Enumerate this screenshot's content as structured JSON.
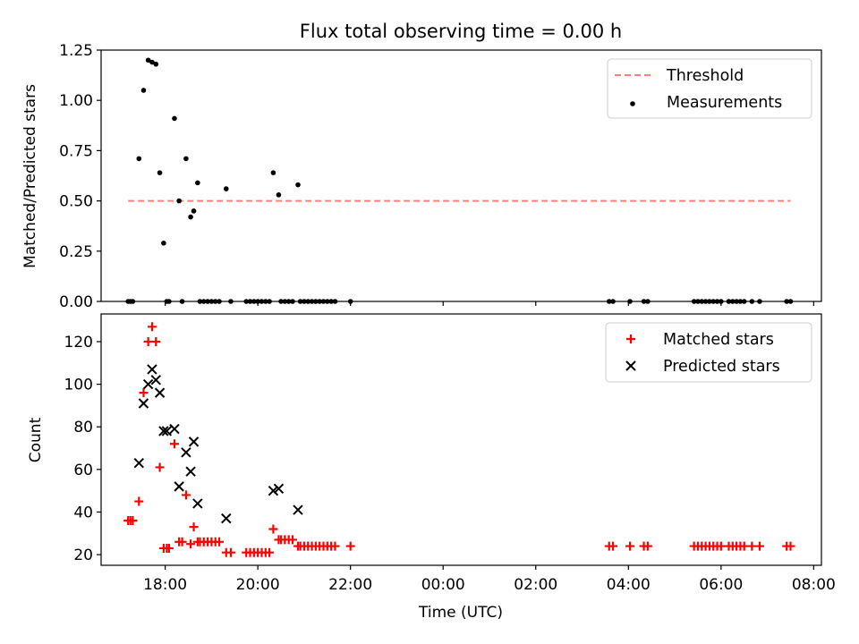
{
  "chart_data": [
    {
      "type": "scatter",
      "title": "Flux total observing time = 0.00 h",
      "xlabel": "",
      "ylabel": "Matched/Predicted stars",
      "xlim": [
        "16:37",
        "08:10"
      ],
      "ylim": [
        0,
        1.25
      ],
      "y_ticks": [
        0.0,
        0.25,
        0.5,
        0.75,
        1.0,
        1.25
      ],
      "y_tick_labels": [
        "0.00",
        "0.25",
        "0.50",
        "0.75",
        "1.00",
        "1.25"
      ],
      "x_ticks": [
        "18:00",
        "20:00",
        "22:00",
        "00:00",
        "02:00",
        "04:00",
        "06:00",
        "08:00"
      ],
      "x_tick_labels_shown": false,
      "legend_position": "upper right",
      "series": [
        {
          "name": "Threshold",
          "kind": "line",
          "style": "dashed",
          "color": "#ff7f7f",
          "x": [
            "17:12",
            "07:30"
          ],
          "y": [
            0.5,
            0.5
          ]
        },
        {
          "name": "Measurements",
          "kind": "scatter",
          "marker": "dot",
          "color": "#000000",
          "points": [
            [
              "17:12",
              0.0
            ],
            [
              "17:15",
              0.0
            ],
            [
              "17:18",
              0.0
            ],
            [
              "17:26",
              0.71
            ],
            [
              "17:32",
              1.05
            ],
            [
              "17:38",
              1.2
            ],
            [
              "17:43",
              1.19
            ],
            [
              "17:48",
              1.18
            ],
            [
              "17:53",
              0.64
            ],
            [
              "17:58",
              0.29
            ],
            [
              "18:02",
              0.0
            ],
            [
              "18:05",
              0.0
            ],
            [
              "18:12",
              0.91
            ],
            [
              "18:18",
              0.5
            ],
            [
              "18:22",
              0.0
            ],
            [
              "18:27",
              0.71
            ],
            [
              "18:33",
              0.42
            ],
            [
              "18:37",
              0.45
            ],
            [
              "18:42",
              0.59
            ],
            [
              "18:45",
              0.0
            ],
            [
              "18:50",
              0.0
            ],
            [
              "18:55",
              0.0
            ],
            [
              "19:00",
              0.0
            ],
            [
              "19:05",
              0.0
            ],
            [
              "19:10",
              0.0
            ],
            [
              "19:19",
              0.56
            ],
            [
              "19:25",
              0.0
            ],
            [
              "19:45",
              0.0
            ],
            [
              "19:50",
              0.0
            ],
            [
              "19:55",
              0.0
            ],
            [
              "20:00",
              0.0
            ],
            [
              "20:05",
              0.0
            ],
            [
              "20:10",
              0.0
            ],
            [
              "20:15",
              0.0
            ],
            [
              "20:20",
              0.64
            ],
            [
              "20:27",
              0.53
            ],
            [
              "20:30",
              0.0
            ],
            [
              "20:35",
              0.0
            ],
            [
              "20:40",
              0.0
            ],
            [
              "20:45",
              0.0
            ],
            [
              "20:52",
              0.58
            ],
            [
              "20:55",
              0.0
            ],
            [
              "21:00",
              0.0
            ],
            [
              "21:05",
              0.0
            ],
            [
              "21:10",
              0.0
            ],
            [
              "21:15",
              0.0
            ],
            [
              "21:20",
              0.0
            ],
            [
              "21:25",
              0.0
            ],
            [
              "21:30",
              0.0
            ],
            [
              "21:35",
              0.0
            ],
            [
              "21:40",
              0.0
            ],
            [
              "22:00",
              0.0
            ],
            [
              "03:35",
              0.0
            ],
            [
              "03:40",
              0.0
            ],
            [
              "04:02",
              0.0
            ],
            [
              "04:20",
              0.0
            ],
            [
              "04:25",
              0.0
            ],
            [
              "05:25",
              0.0
            ],
            [
              "05:30",
              0.0
            ],
            [
              "05:35",
              0.0
            ],
            [
              "05:40",
              0.0
            ],
            [
              "05:45",
              0.0
            ],
            [
              "05:50",
              0.0
            ],
            [
              "05:55",
              0.0
            ],
            [
              "06:00",
              0.0
            ],
            [
              "06:10",
              0.0
            ],
            [
              "06:15",
              0.0
            ],
            [
              "06:20",
              0.0
            ],
            [
              "06:25",
              0.0
            ],
            [
              "06:30",
              0.0
            ],
            [
              "06:40",
              0.0
            ],
            [
              "06:50",
              0.0
            ],
            [
              "07:25",
              0.0
            ],
            [
              "07:30",
              0.0
            ]
          ]
        }
      ]
    },
    {
      "type": "scatter",
      "title": "",
      "xlabel": "Time (UTC)",
      "ylabel": "Count",
      "xlim": [
        "16:37",
        "08:10"
      ],
      "ylim": [
        15,
        133
      ],
      "y_ticks": [
        20,
        40,
        60,
        80,
        100,
        120
      ],
      "y_tick_labels": [
        "20",
        "40",
        "60",
        "80",
        "100",
        "120"
      ],
      "x_ticks": [
        "18:00",
        "20:00",
        "22:00",
        "00:00",
        "02:00",
        "04:00",
        "06:00",
        "08:00"
      ],
      "x_tick_labels": [
        "18:00",
        "20:00",
        "22:00",
        "00:00",
        "02:00",
        "04:00",
        "06:00",
        "08:00"
      ],
      "legend_position": "upper right",
      "series": [
        {
          "name": "Matched stars",
          "kind": "scatter",
          "marker": "plus",
          "color": "#ff0000",
          "points": [
            [
              "17:12",
              36
            ],
            [
              "17:15",
              36
            ],
            [
              "17:18",
              36
            ],
            [
              "17:26",
              45
            ],
            [
              "17:32",
              96
            ],
            [
              "17:38",
              120
            ],
            [
              "17:43",
              127
            ],
            [
              "17:48",
              120
            ],
            [
              "17:53",
              61
            ],
            [
              "17:58",
              23
            ],
            [
              "18:02",
              23
            ],
            [
              "18:05",
              23
            ],
            [
              "18:12",
              72
            ],
            [
              "18:18",
              26
            ],
            [
              "18:22",
              26
            ],
            [
              "18:27",
              48
            ],
            [
              "18:33",
              25
            ],
            [
              "18:37",
              33
            ],
            [
              "18:42",
              26
            ],
            [
              "18:45",
              26
            ],
            [
              "18:50",
              26
            ],
            [
              "18:55",
              26
            ],
            [
              "19:00",
              26
            ],
            [
              "19:05",
              26
            ],
            [
              "19:10",
              26
            ],
            [
              "19:19",
              21
            ],
            [
              "19:25",
              21
            ],
            [
              "19:45",
              21
            ],
            [
              "19:50",
              21
            ],
            [
              "19:55",
              21
            ],
            [
              "20:00",
              21
            ],
            [
              "20:05",
              21
            ],
            [
              "20:10",
              21
            ],
            [
              "20:15",
              21
            ],
            [
              "20:20",
              32
            ],
            [
              "20:27",
              27
            ],
            [
              "20:30",
              27
            ],
            [
              "20:35",
              27
            ],
            [
              "20:40",
              27
            ],
            [
              "20:45",
              27
            ],
            [
              "20:52",
              24
            ],
            [
              "20:55",
              24
            ],
            [
              "21:00",
              24
            ],
            [
              "21:05",
              24
            ],
            [
              "21:10",
              24
            ],
            [
              "21:15",
              24
            ],
            [
              "21:20",
              24
            ],
            [
              "21:25",
              24
            ],
            [
              "21:30",
              24
            ],
            [
              "21:35",
              24
            ],
            [
              "21:40",
              24
            ],
            [
              "22:00",
              24
            ],
            [
              "03:35",
              24
            ],
            [
              "03:40",
              24
            ],
            [
              "04:02",
              24
            ],
            [
              "04:20",
              24
            ],
            [
              "04:25",
              24
            ],
            [
              "05:25",
              24
            ],
            [
              "05:30",
              24
            ],
            [
              "05:35",
              24
            ],
            [
              "05:40",
              24
            ],
            [
              "05:45",
              24
            ],
            [
              "05:50",
              24
            ],
            [
              "05:55",
              24
            ],
            [
              "06:00",
              24
            ],
            [
              "06:10",
              24
            ],
            [
              "06:15",
              24
            ],
            [
              "06:20",
              24
            ],
            [
              "06:25",
              24
            ],
            [
              "06:30",
              24
            ],
            [
              "06:40",
              24
            ],
            [
              "06:50",
              24
            ],
            [
              "07:25",
              24
            ],
            [
              "07:30",
              24
            ]
          ]
        },
        {
          "name": "Predicted stars",
          "kind": "scatter",
          "marker": "x",
          "color": "#000000",
          "points": [
            [
              "17:26",
              63
            ],
            [
              "17:32",
              91
            ],
            [
              "17:38",
              100
            ],
            [
              "17:43",
              107
            ],
            [
              "17:48",
              102
            ],
            [
              "17:53",
              96
            ],
            [
              "17:58",
              78
            ],
            [
              "18:02",
              78
            ],
            [
              "18:12",
              79
            ],
            [
              "18:18",
              52
            ],
            [
              "18:27",
              68
            ],
            [
              "18:33",
              59
            ],
            [
              "18:37",
              73
            ],
            [
              "18:42",
              44
            ],
            [
              "19:19",
              37
            ],
            [
              "20:20",
              50
            ],
            [
              "20:27",
              51
            ],
            [
              "20:52",
              41
            ]
          ]
        }
      ]
    }
  ]
}
